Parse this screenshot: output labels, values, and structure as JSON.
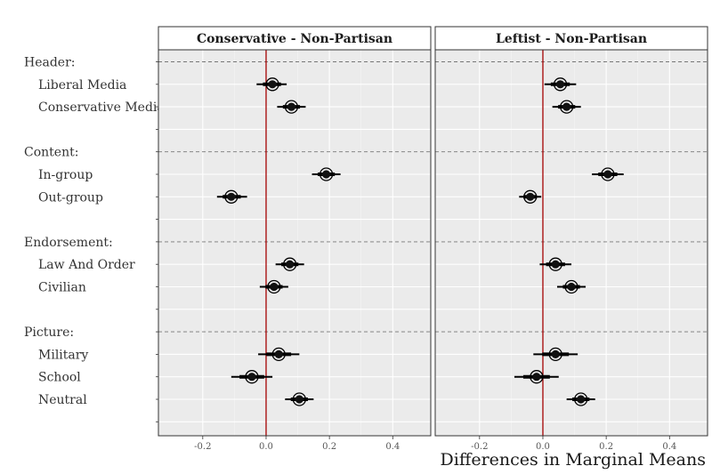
{
  "chart_data": {
    "type": "scatter",
    "xlabel": "Differences in Marginal Means",
    "ylabel": "",
    "xlim": [
      -0.34,
      0.52
    ],
    "x_ticks": [
      -0.2,
      0.0,
      0.2,
      0.4
    ],
    "x_tick_labels": [
      "-0.2",
      "0.0",
      "0.2",
      "0.4"
    ],
    "reference_line": 0.0,
    "grid": true,
    "rows": [
      {
        "label": "Header:",
        "kind": "group"
      },
      {
        "label": "Liberal Media",
        "kind": "level"
      },
      {
        "label": "Conservative Media",
        "kind": "level"
      },
      {
        "label": "",
        "kind": "blank"
      },
      {
        "label": "Content:",
        "kind": "group"
      },
      {
        "label": "In-group",
        "kind": "level"
      },
      {
        "label": "Out-group",
        "kind": "level"
      },
      {
        "label": "",
        "kind": "blank"
      },
      {
        "label": "Endorsement:",
        "kind": "group"
      },
      {
        "label": "Law And Order",
        "kind": "level"
      },
      {
        "label": "Civilian",
        "kind": "level"
      },
      {
        "label": "",
        "kind": "blank"
      },
      {
        "label": "Picture:",
        "kind": "group"
      },
      {
        "label": "Military",
        "kind": "level"
      },
      {
        "label": "School",
        "kind": "level"
      },
      {
        "label": "Neutral",
        "kind": "level"
      },
      {
        "label": "",
        "kind": "blank"
      }
    ],
    "panels": [
      {
        "title": "Conservative - Non-Partisan",
        "points": [
          {
            "row": "Liberal Media",
            "estimate": 0.02,
            "lower": -0.03,
            "upper": 0.065
          },
          {
            "row": "Conservative Media",
            "estimate": 0.08,
            "lower": 0.035,
            "upper": 0.125
          },
          {
            "row": "In-group",
            "estimate": 0.19,
            "lower": 0.145,
            "upper": 0.235
          },
          {
            "row": "Out-group",
            "estimate": -0.11,
            "lower": -0.155,
            "upper": -0.06
          },
          {
            "row": "Law And Order",
            "estimate": 0.075,
            "lower": 0.03,
            "upper": 0.12
          },
          {
            "row": "Civilian",
            "estimate": 0.025,
            "lower": -0.02,
            "upper": 0.07
          },
          {
            "row": "Military",
            "estimate": 0.04,
            "lower": -0.025,
            "upper": 0.105
          },
          {
            "row": "School",
            "estimate": -0.045,
            "lower": -0.11,
            "upper": 0.02
          },
          {
            "row": "Neutral",
            "estimate": 0.105,
            "lower": 0.06,
            "upper": 0.15
          }
        ]
      },
      {
        "title": "Leftist - Non-Partisan",
        "points": [
          {
            "row": "Liberal Media",
            "estimate": 0.055,
            "lower": 0.005,
            "upper": 0.105
          },
          {
            "row": "Conservative Media",
            "estimate": 0.075,
            "lower": 0.03,
            "upper": 0.12
          },
          {
            "row": "In-group",
            "estimate": 0.205,
            "lower": 0.155,
            "upper": 0.255
          },
          {
            "row": "Out-group",
            "estimate": -0.04,
            "lower": -0.075,
            "upper": -0.005
          },
          {
            "row": "Law And Order",
            "estimate": 0.04,
            "lower": -0.01,
            "upper": 0.09
          },
          {
            "row": "Civilian",
            "estimate": 0.09,
            "lower": 0.045,
            "upper": 0.135
          },
          {
            "row": "Military",
            "estimate": 0.04,
            "lower": -0.03,
            "upper": 0.11
          },
          {
            "row": "School",
            "estimate": -0.02,
            "lower": -0.09,
            "upper": 0.05
          },
          {
            "row": "Neutral",
            "estimate": 0.12,
            "lower": 0.075,
            "upper": 0.165
          }
        ]
      }
    ]
  }
}
